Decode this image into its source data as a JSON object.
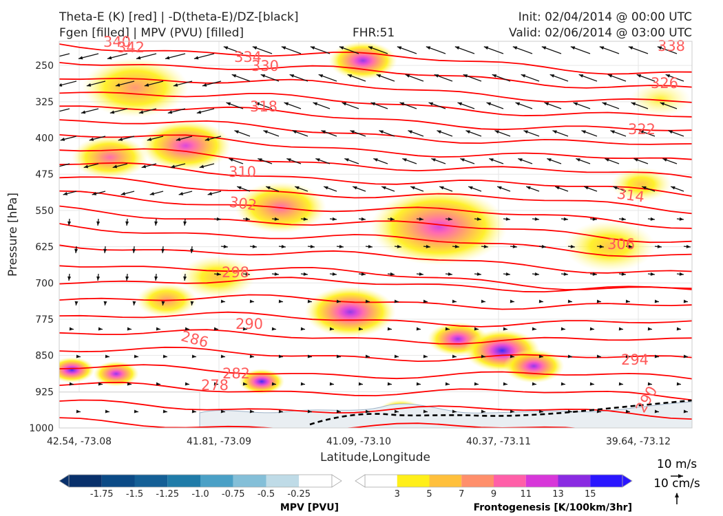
{
  "header": {
    "left_line1": "Theta-E (K) [red] | -D(theta-E)/DZ-[black]",
    "left_line2": "Fgen [filled] | MPV (PVU) [filled]",
    "center": "FHR:51",
    "right_line1": "Init: 02/04/2014 @ 00:00 UTC",
    "right_line2": "Valid: 02/06/2014 @ 03:00 UTC"
  },
  "colors": {
    "theta_e": "#ff0000",
    "theta_e_label": "#ff5a5a",
    "vectors": "#111111",
    "terrain": "#e9eef2",
    "freezing_line": "#000000"
  },
  "chart_data": {
    "type": "cross-section",
    "xlabel": "Latitude,Longitude",
    "ylabel": "Pressure [hPa]",
    "x_ticks": [
      "42.54, -73.08",
      "41.81, -73.09",
      "41.09, -73.10",
      "40.37, -73.11",
      "39.64, -73.12"
    ],
    "y_ticks": [
      250,
      325,
      400,
      475,
      550,
      625,
      700,
      775,
      850,
      925,
      1000
    ],
    "ylim": [
      1000,
      200
    ],
    "grid": true,
    "theta_e_labels": [
      "338",
      "342",
      "340",
      "334",
      "330",
      "326",
      "318",
      "322",
      "310",
      "314",
      "302",
      "306",
      "298",
      "290",
      "286",
      "294",
      "282",
      "278",
      "290"
    ],
    "fgen_blobs": [
      {
        "cx": 0.48,
        "cy": 0.05,
        "r": 0.045,
        "max": 13
      },
      {
        "cx": 0.12,
        "cy": 0.12,
        "r": 0.07,
        "max": 7
      },
      {
        "cx": 0.2,
        "cy": 0.27,
        "r": 0.06,
        "max": 11
      },
      {
        "cx": 0.08,
        "cy": 0.3,
        "r": 0.05,
        "max": 9
      },
      {
        "cx": 0.35,
        "cy": 0.43,
        "r": 0.06,
        "max": 9
      },
      {
        "cx": 0.6,
        "cy": 0.48,
        "r": 0.09,
        "max": 11
      },
      {
        "cx": 0.87,
        "cy": 0.53,
        "r": 0.06,
        "max": 5
      },
      {
        "cx": 0.46,
        "cy": 0.7,
        "r": 0.06,
        "max": 13
      },
      {
        "cx": 0.63,
        "cy": 0.77,
        "r": 0.04,
        "max": 13
      },
      {
        "cx": 0.7,
        "cy": 0.8,
        "r": 0.05,
        "max": 15
      },
      {
        "cx": 0.75,
        "cy": 0.84,
        "r": 0.04,
        "max": 13
      },
      {
        "cx": 0.02,
        "cy": 0.85,
        "r": 0.03,
        "max": 15
      },
      {
        "cx": 0.09,
        "cy": 0.86,
        "r": 0.03,
        "max": 13
      },
      {
        "cx": 0.32,
        "cy": 0.88,
        "r": 0.03,
        "max": 15
      },
      {
        "cx": 0.54,
        "cy": 0.96,
        "r": 0.03,
        "max": 13
      },
      {
        "cx": 0.59,
        "cy": 0.98,
        "r": 0.03,
        "max": 13
      },
      {
        "cx": 0.17,
        "cy": 0.67,
        "r": 0.04,
        "max": 7
      },
      {
        "cx": 0.25,
        "cy": 0.61,
        "r": 0.05,
        "max": 5
      },
      {
        "cx": 0.92,
        "cy": 0.37,
        "r": 0.04,
        "max": 5
      },
      {
        "cx": 0.95,
        "cy": 0.15,
        "r": 0.04,
        "max": 3
      }
    ],
    "legend_mpv": {
      "title": "MPV [PVU]",
      "ticks": [
        "-1.75",
        "-1.5",
        "-1.25",
        "-1.0",
        "-0.75",
        "-0.5",
        "-0.25"
      ],
      "colors": [
        "#08306b",
        "#0b4a86",
        "#145f96",
        "#1f7ba8",
        "#4aa0c6",
        "#84bfd8",
        "#bfdbe7",
        "#ffffff"
      ]
    },
    "legend_fgen": {
      "title": "Frontogenesis [K/100km/3hr]",
      "ticks": [
        "3",
        "5",
        "7",
        "9",
        "11",
        "13",
        "15"
      ],
      "colors": [
        "#ffffff",
        "#ffef1a",
        "#ffc03c",
        "#ff8f6b",
        "#ff5fa8",
        "#d737d9",
        "#8a2be2",
        "#2a16ff"
      ]
    },
    "vector_key": {
      "label_1": "10 m/s",
      "label_2": "10 cm/s"
    }
  }
}
